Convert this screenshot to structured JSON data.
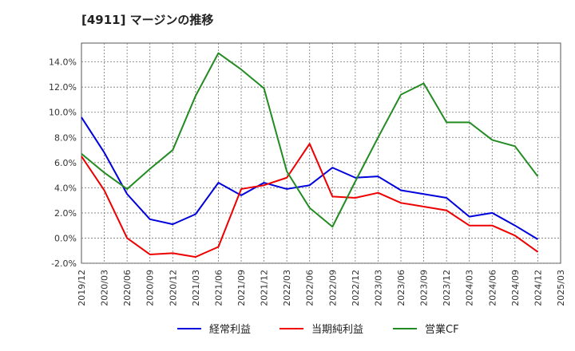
{
  "chart_data": {
    "type": "line",
    "title": "[4911]  マージンの推移",
    "xlabel": "",
    "ylabel": "",
    "categories": [
      "2019/12",
      "2020/03",
      "2020/06",
      "2020/09",
      "2020/12",
      "2021/03",
      "2021/06",
      "2021/09",
      "2021/12",
      "2022/03",
      "2022/06",
      "2022/09",
      "2022/12",
      "2023/03",
      "2023/06",
      "2023/09",
      "2023/12",
      "2024/03",
      "2024/06",
      "2024/09",
      "2024/12",
      "2025/03"
    ],
    "y_ticks": [
      "14.0%",
      "12.0%",
      "10.0%",
      "8.0%",
      "6.0%",
      "4.0%",
      "2.0%",
      "0.0%",
      "-2.0%"
    ],
    "ylim": [
      -2.0,
      15.5
    ],
    "grid": true,
    "legend_position": "bottom",
    "series": [
      {
        "name": "経常利益",
        "color": "#0000dd",
        "values": [
          9.6,
          6.8,
          3.5,
          1.5,
          1.1,
          1.9,
          4.4,
          3.4,
          4.4,
          3.9,
          4.2,
          5.6,
          4.8,
          4.9,
          3.8,
          3.5,
          3.2,
          1.7,
          2.0,
          1.0,
          -0.1,
          null
        ]
      },
      {
        "name": "当期純利益",
        "color": "#ee0000",
        "values": [
          6.5,
          3.8,
          0.0,
          -1.3,
          -1.2,
          -1.5,
          -0.7,
          3.9,
          4.2,
          4.8,
          7.5,
          3.3,
          3.2,
          3.6,
          2.8,
          2.5,
          2.2,
          1.0,
          1.0,
          0.2,
          -1.1,
          null
        ]
      },
      {
        "name": "営業CF",
        "color": "#228b22",
        "values": [
          6.7,
          5.2,
          3.9,
          5.5,
          7.0,
          11.3,
          14.7,
          13.4,
          11.9,
          5.3,
          2.4,
          0.9,
          4.5,
          8.0,
          11.4,
          12.3,
          9.2,
          9.2,
          7.8,
          7.3,
          4.9,
          null
        ]
      }
    ]
  }
}
